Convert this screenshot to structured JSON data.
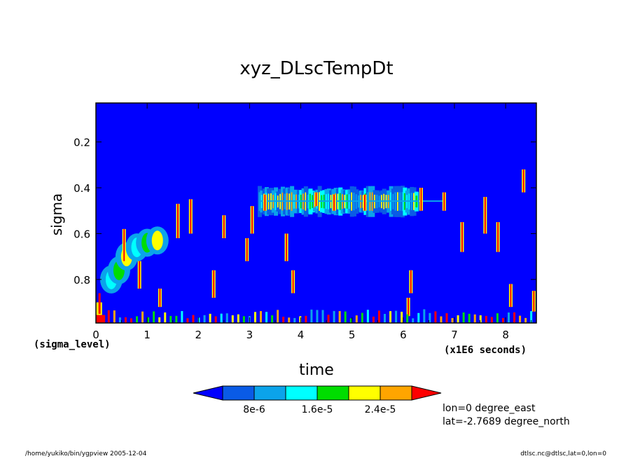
{
  "chart_data": {
    "type": "heatmap",
    "title": "xyz_DLscTempDt",
    "xlabel": "time",
    "x_units_note": "(x1E6 seconds)",
    "ylabel": "sigma",
    "y_units_note": "(sigma_level)",
    "x_range": [
      0,
      8.6
    ],
    "y_range": [
      0.03,
      0.99
    ],
    "y_inverted": true,
    "x_ticks": [
      "0",
      "1",
      "2",
      "3",
      "4",
      "5",
      "6",
      "7",
      "8"
    ],
    "y_ticks": [
      "0.2",
      "0.4",
      "0.6",
      "0.8"
    ],
    "background_level": "below 0",
    "colorbar": {
      "labels": [
        "8e-6",
        "1.6e-5",
        "2.4e-5"
      ],
      "levels": [
        0,
        4e-06,
        8e-06,
        1.2e-05,
        1.6e-05,
        2e-05,
        2.4e-05,
        2.8e-05
      ],
      "colors": [
        "#0000ff",
        "#0a5be6",
        "#0ba3ea",
        "#00ffff",
        "#00dd00",
        "#ffff00",
        "#ffa500",
        "#ff0000"
      ]
    },
    "features": [
      {
        "name": "upper-band-streaks",
        "sigma_center": 0.46,
        "sigma_halfwidth": 0.07,
        "time_range": [
          3.2,
          6.3
        ]
      },
      {
        "name": "early-descending-band",
        "sigma_center": 0.72,
        "time_range": [
          0.3,
          1.3
        ]
      },
      {
        "name": "surface-activity",
        "sigma_range": [
          0.9,
          0.99
        ],
        "time_range": [
          0,
          8.6
        ]
      },
      {
        "name": "near-origin-maximum",
        "sigma_range": [
          0.85,
          0.99
        ],
        "time_range": [
          0,
          0.2
        ],
        "level": "2.8e-5+"
      }
    ]
  },
  "info": {
    "lon": "lon=0 degree_east",
    "lat": "lat=-2.7689 degree_north"
  },
  "footer": {
    "left": "/home/yukiko/bin/ygpview  2005-12-04",
    "right": "dtlsc.nc@dtlsc,lat=0,lon=0"
  },
  "colors": {
    "background": "#0000ff",
    "maximum": "#ff0000"
  }
}
